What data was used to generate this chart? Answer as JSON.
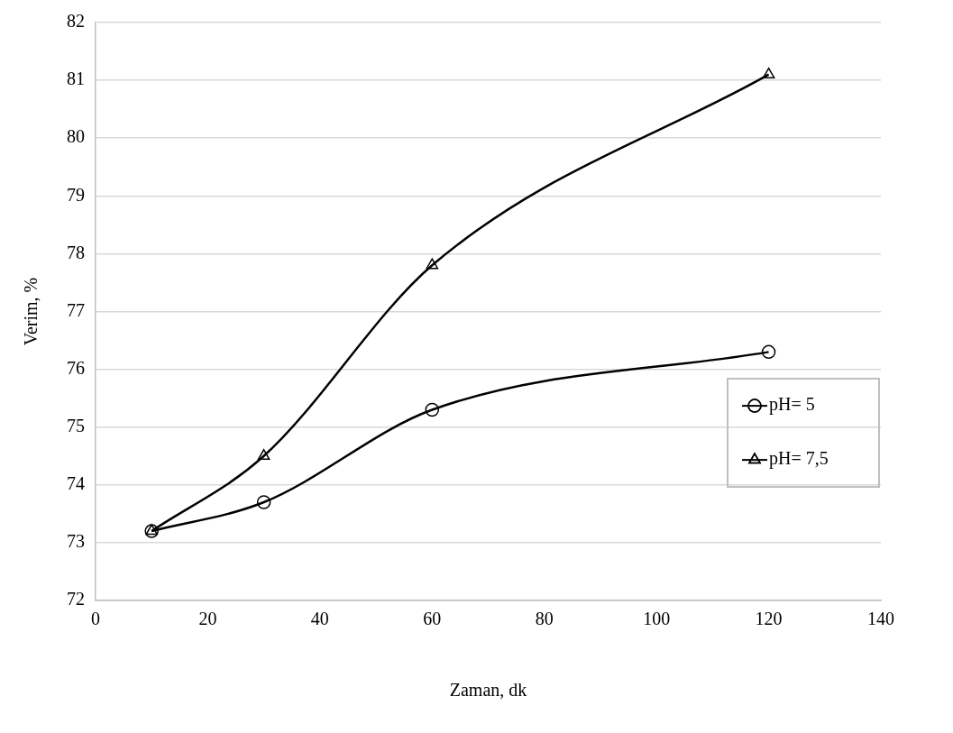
{
  "chart_data": {
    "type": "line",
    "xlabel": "Zaman, dk",
    "ylabel": "Verim, %",
    "x": [
      10,
      30,
      60,
      120
    ],
    "series": [
      {
        "name": "pH= 5",
        "color": "#000000",
        "marker": "circle",
        "values": [
          73.2,
          73.7,
          75.3,
          76.3
        ]
      },
      {
        "name": "pH= 7,5",
        "color": "#000000",
        "marker": "triangle",
        "values": [
          73.2,
          74.5,
          77.8,
          81.1
        ]
      }
    ],
    "xlim": [
      0,
      140
    ],
    "xticks": [
      0,
      20,
      40,
      60,
      80,
      100,
      120,
      140
    ],
    "ylim": [
      72,
      82
    ],
    "yticks": [
      72,
      73,
      74,
      75,
      76,
      77,
      78,
      79,
      80,
      81,
      82
    ],
    "grid": "y",
    "legend": "right",
    "line_style": "solid"
  }
}
